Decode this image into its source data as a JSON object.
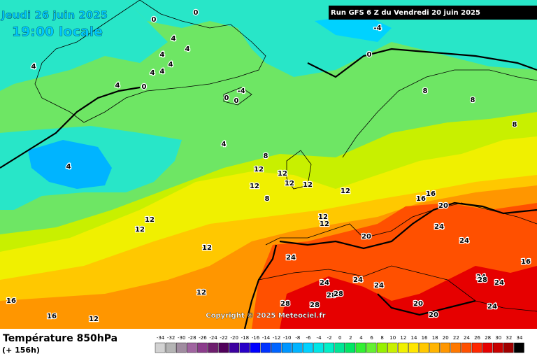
{
  "header": {
    "date": "Jeudi 26 juin 2025",
    "time": "19:00 locale",
    "run": "Run GFS 6 Z du Vendredi 20 juin 2025"
  },
  "copyright": "Copyright © 2025 Meteociel.fr",
  "footer": {
    "title": "Température 850hPa",
    "lead": "(+ 156h)"
  },
  "legend": {
    "values": [
      -34,
      -32,
      -30,
      -28,
      -26,
      -24,
      -22,
      -20,
      -18,
      -16,
      -14,
      -12,
      -10,
      -8,
      -6,
      -4,
      -2,
      0,
      2,
      4,
      6,
      8,
      10,
      12,
      14,
      16,
      18,
      20,
      22,
      24,
      26,
      28,
      30,
      32,
      34
    ],
    "colors": [
      "#d2d2d2",
      "#b4b4b4",
      "#a08ca0",
      "#a064a0",
      "#8c3c8c",
      "#6e1e6e",
      "#50005a",
      "#3c00a0",
      "#2800c8",
      "#0000ff",
      "#0032ff",
      "#0064ff",
      "#0096ff",
      "#00b4ff",
      "#00d2ff",
      "#00e6e6",
      "#00f0c8",
      "#00e696",
      "#00e664",
      "#32f032",
      "#64f032",
      "#96f000",
      "#c8f000",
      "#f0f000",
      "#ffe600",
      "#ffc800",
      "#ffb400",
      "#ff9600",
      "#ff7800",
      "#ff5000",
      "#ff2800",
      "#e60000",
      "#c80000",
      "#a00000",
      "#000000"
    ]
  },
  "contour_labels": [
    0,
    0,
    4,
    4,
    4,
    4,
    4,
    4,
    4,
    4,
    0,
    0,
    0,
    -4,
    0,
    -4,
    8,
    8,
    8,
    8,
    4,
    4,
    12,
    12,
    12,
    12,
    12,
    12,
    8,
    12,
    12,
    12,
    12,
    12,
    16,
    16,
    20,
    20,
    24,
    24,
    24,
    24,
    24,
    24,
    28,
    28,
    28,
    28,
    20,
    20,
    16,
    16,
    12,
    16,
    12,
    24,
    28,
    24,
    24
  ]
}
